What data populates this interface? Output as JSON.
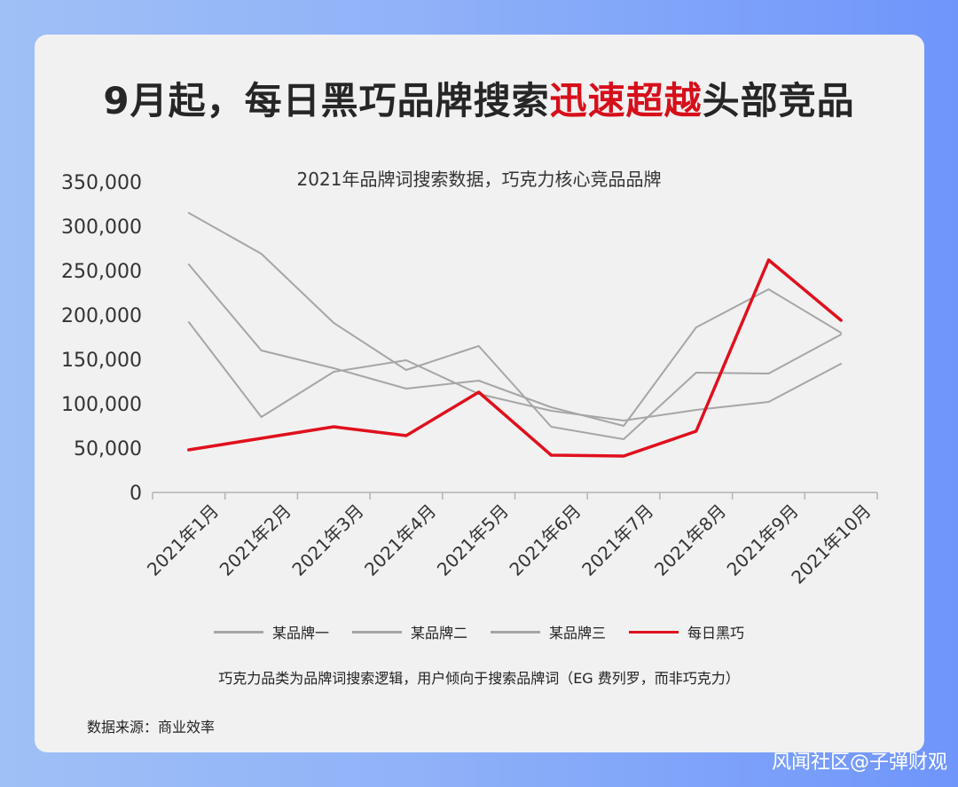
{
  "headline": {
    "part1": "9月起，每日黑巧品牌搜索",
    "highlight": "迅速超越",
    "part2": "头部竞品",
    "highlight_color": "#d60f1a"
  },
  "chart_data": {
    "type": "line",
    "title": "2021年品牌词搜索数据，巧克力核心竞品品牌",
    "categories": [
      "2021年1月",
      "2021年2月",
      "2021年3月",
      "2021年4月",
      "2021年5月",
      "2021年6月",
      "2021年7月",
      "2021年8月",
      "2021年9月",
      "2021年10月"
    ],
    "y_ticks": [
      "0",
      "50,000",
      "100,000",
      "150,000",
      "200,000",
      "250,000",
      "300,000",
      "350,000"
    ],
    "ylim": [
      0,
      350000
    ],
    "grid": false,
    "legend_position": "bottom",
    "series": [
      {
        "name": "某品牌一",
        "color": "#a6a6a6",
        "values": [
          315000,
          269000,
          191000,
          138000,
          165000,
          74000,
          60000,
          135000,
          134000,
          178000
        ]
      },
      {
        "name": "某品牌二",
        "color": "#a6a6a6",
        "values": [
          257000,
          160000,
          140000,
          117000,
          126000,
          96000,
          75000,
          186000,
          229000,
          180000
        ]
      },
      {
        "name": "某品牌三",
        "color": "#a6a6a6",
        "values": [
          192000,
          85000,
          136000,
          149000,
          111000,
          92000,
          81000,
          93000,
          102000,
          145000
        ]
      },
      {
        "name": "每日黑巧",
        "color": "#e0101d",
        "values": [
          48000,
          61000,
          74000,
          64000,
          113000,
          42000,
          41000,
          69000,
          262000,
          194000
        ]
      }
    ]
  },
  "note": "巧克力品类为品牌词搜索逻辑，用户倾向于搜索品牌词（EG 费列罗，而非巧克力）",
  "source": "数据来源：商业效率",
  "watermark": "风闻社区@子弹财观"
}
